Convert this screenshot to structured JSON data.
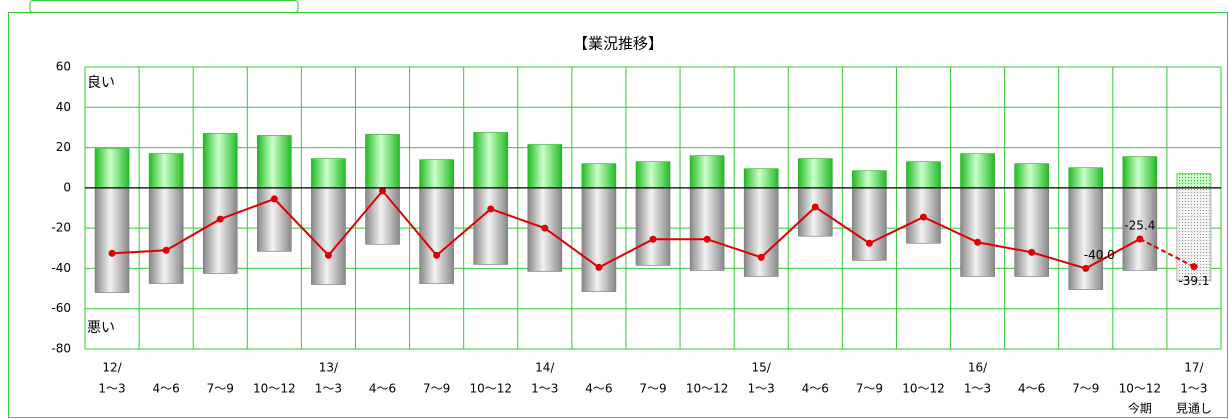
{
  "chart_data": {
    "type": "bar-line",
    "title": "【業況推移】",
    "annotations": [
      "良い",
      "悪い"
    ],
    "categories": [
      "1～3",
      "4～6",
      "7～9",
      "10～12",
      "1～3",
      "4～6",
      "7～9",
      "10～12",
      "1～3",
      "4～6",
      "7～9",
      "10～12",
      "1～3",
      "4～6",
      "7～9",
      "10～12",
      "1～3",
      "4～6",
      "7～9",
      "10～12",
      "1～3"
    ],
    "year_labels": [
      "12/",
      null,
      null,
      null,
      "13/",
      null,
      null,
      null,
      "14/",
      null,
      null,
      null,
      "15/",
      null,
      null,
      null,
      "16/",
      null,
      null,
      null,
      "17/"
    ],
    "sub_labels": [
      null,
      null,
      null,
      null,
      null,
      null,
      null,
      null,
      null,
      null,
      null,
      null,
      null,
      null,
      null,
      null,
      null,
      null,
      null,
      "今期",
      "見通し"
    ],
    "ylim": [
      -80,
      60
    ],
    "yticks": [
      -80,
      -60,
      -40,
      -20,
      0,
      20,
      40,
      60
    ],
    "grid": true,
    "series": [
      {
        "type": "bar",
        "color": "#33dd33",
        "values": [
          19.5,
          17,
          27,
          26,
          14.5,
          26.5,
          14,
          27.5,
          21.5,
          12,
          13,
          16,
          9.5,
          14.5,
          8.5,
          13,
          17,
          12,
          10,
          15.5,
          7
        ]
      },
      {
        "type": "bar",
        "color": "#999999",
        "values": [
          -52,
          -47.5,
          -42.5,
          -31.5,
          -48,
          -28,
          -47.5,
          -38,
          -41.5,
          -51.5,
          -38.5,
          -41,
          -44,
          -24,
          -36,
          -27.5,
          -44,
          -44,
          -50.5,
          -41,
          -46
        ]
      },
      {
        "type": "line",
        "color": "#e00000",
        "values": [
          -32.5,
          -31,
          -15.5,
          -5.5,
          -33.5,
          -1.5,
          -33.5,
          -10.5,
          -20,
          -39.5,
          -25.5,
          -25.5,
          -34.5,
          -9.5,
          -27.5,
          -14.5,
          -27,
          -32,
          -40.0,
          -25.4,
          -39.1
        ],
        "value_labels": [
          null,
          null,
          null,
          null,
          null,
          null,
          null,
          null,
          null,
          null,
          null,
          null,
          null,
          null,
          null,
          null,
          null,
          null,
          "-40.0",
          "-25.4",
          "-39.1"
        ]
      }
    ]
  }
}
